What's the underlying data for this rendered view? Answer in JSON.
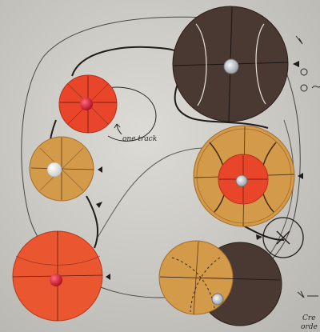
{
  "annotations": {
    "track_label": "one track",
    "corner_label": "Cre",
    "corner_label_2": "orde"
  },
  "colors": {
    "paper": "#d3d2cd",
    "red": "#e8452a",
    "orange_red": "#e9562f",
    "ochre": "#d39a4a",
    "brown": "#4a3832",
    "ink": "#1f1c1a",
    "pin_red": "#d8122c",
    "pin_white": "#f3f3f0",
    "pin_clear": "#cfd3d6"
  },
  "discs": [
    {
      "name": "brown-top-right",
      "color": "brown",
      "pin": "clear"
    },
    {
      "name": "red-top-left",
      "color": "red",
      "pin": "red"
    },
    {
      "name": "ochre-left",
      "color": "ochre",
      "pin": "white"
    },
    {
      "name": "ochre-right-with-red",
      "color": "ochre",
      "pin": "clear"
    },
    {
      "name": "red-bottom-left",
      "color": "orange_red",
      "pin": "red"
    },
    {
      "name": "ochre-brown-bottom-right",
      "color": "ochre",
      "pin": "clear"
    }
  ]
}
